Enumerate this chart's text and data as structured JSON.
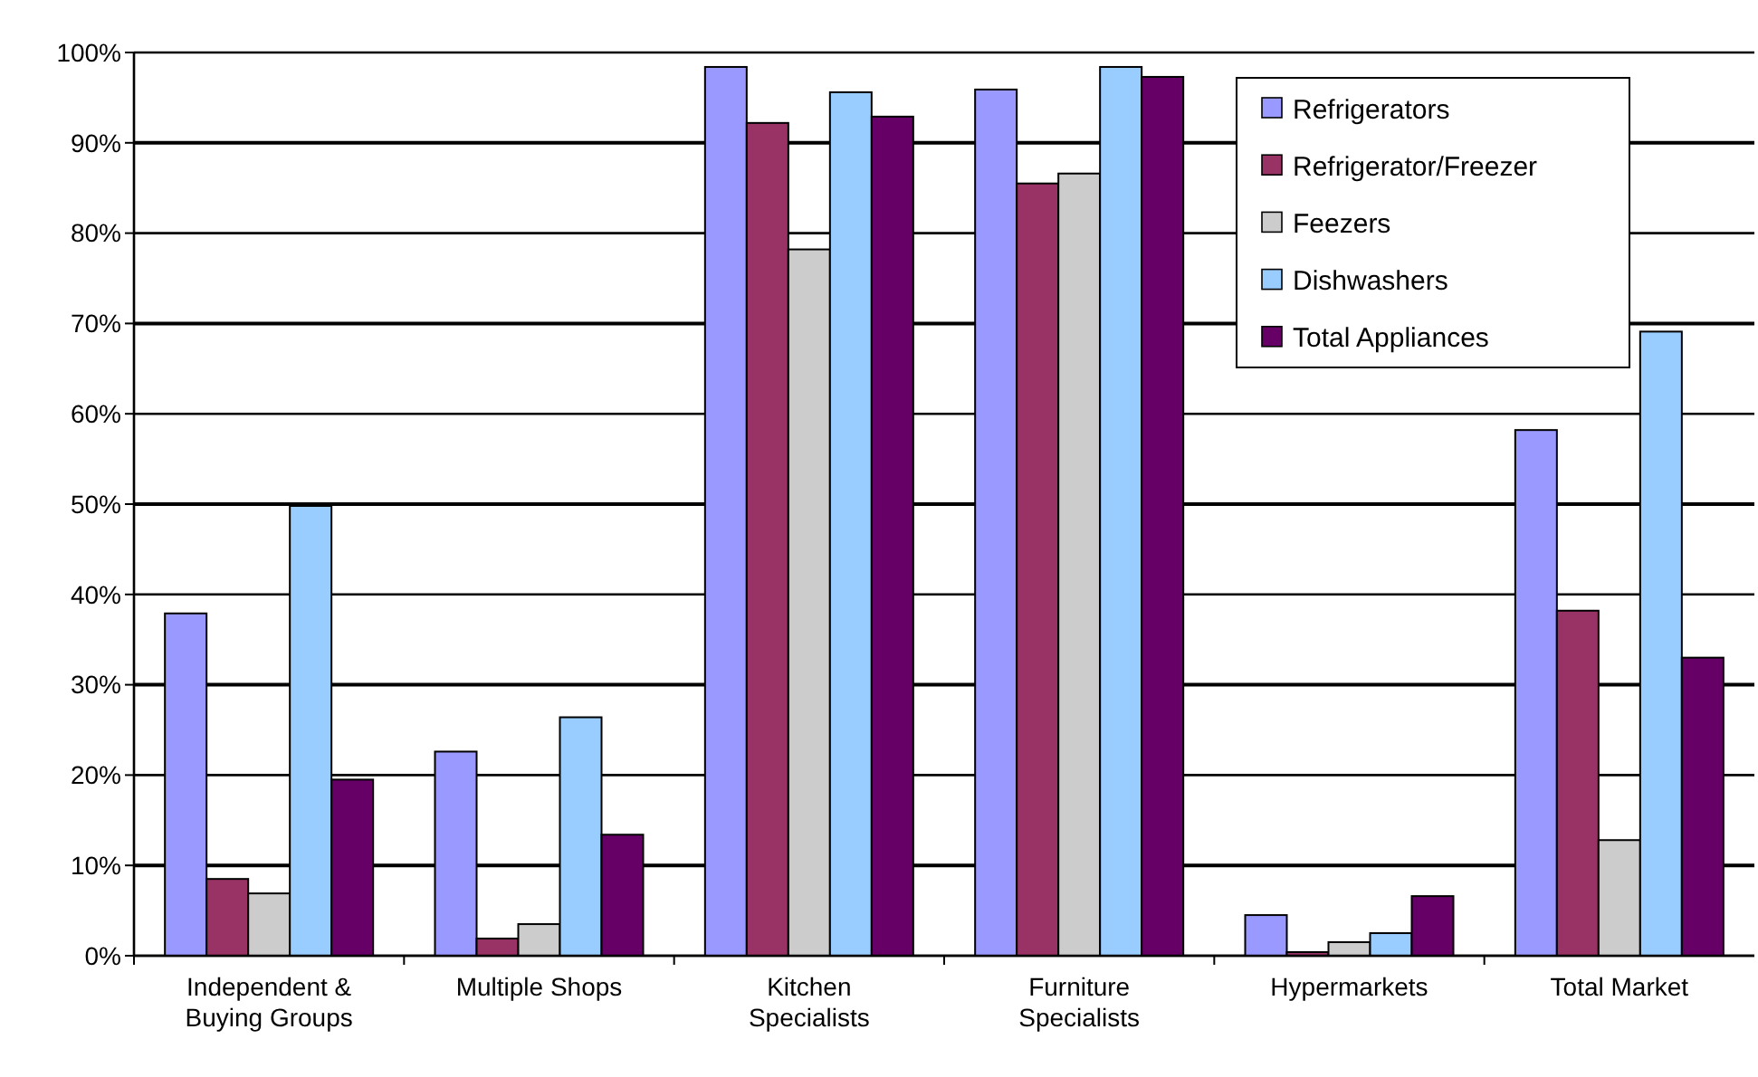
{
  "chart_data": {
    "type": "bar",
    "categories": [
      "Independent & Buying Groups",
      "Multiple Shops",
      "Kitchen Specialists",
      "Furniture Specialists",
      "Hypermarkets",
      "Total Market"
    ],
    "series": [
      {
        "name": "Refrigerators",
        "color": "#9999ff",
        "values": [
          37.9,
          22.6,
          98.4,
          95.9,
          4.5,
          58.2
        ]
      },
      {
        "name": "Refrigerator/Freezer",
        "color": "#993366",
        "values": [
          8.5,
          1.9,
          92.2,
          85.5,
          0.4,
          38.2
        ]
      },
      {
        "name": "Feezers",
        "color": "#cccccc",
        "values": [
          6.9,
          3.5,
          78.2,
          86.6,
          1.5,
          12.8
        ]
      },
      {
        "name": "Dishwashers",
        "color": "#99ccff",
        "values": [
          49.8,
          26.4,
          95.6,
          98.4,
          2.5,
          69.1
        ]
      },
      {
        "name": "Total Appliances",
        "color": "#660066",
        "values": [
          19.5,
          13.4,
          92.9,
          97.3,
          6.6,
          33.0
        ]
      }
    ],
    "ylim": [
      0,
      100
    ],
    "yticks": [
      {
        "value": 0,
        "label": "0%"
      },
      {
        "value": 10,
        "label": "10%"
      },
      {
        "value": 20,
        "label": "20%"
      },
      {
        "value": 30,
        "label": "30%"
      },
      {
        "value": 40,
        "label": "40%"
      },
      {
        "value": 50,
        "label": "50%"
      },
      {
        "value": 60,
        "label": "60%"
      },
      {
        "value": 70,
        "label": "70%"
      },
      {
        "value": 80,
        "label": "80%"
      },
      {
        "value": 90,
        "label": "90%"
      },
      {
        "value": 100,
        "label": "100%"
      }
    ],
    "grid": "y",
    "legend": "top right"
  }
}
